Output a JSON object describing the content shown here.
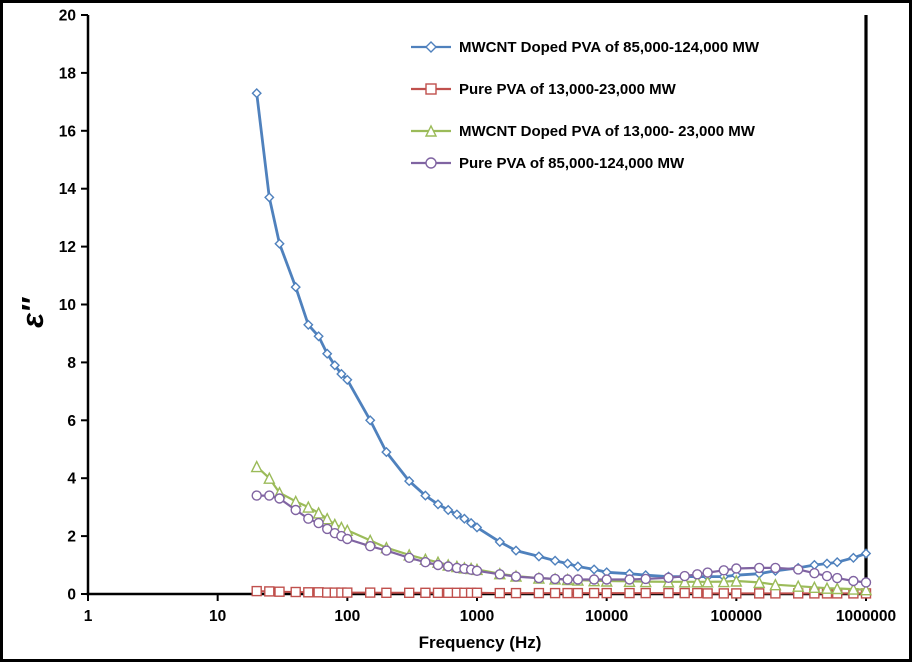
{
  "colors": {
    "background": "#FFFFFF",
    "frame_border": "#000000",
    "axis": "#000000",
    "text": "#000000"
  },
  "chart_data": {
    "type": "line",
    "title": "",
    "xlabel": "Frequency (Hz)",
    "ylabel": "ε″",
    "x_scale": "log",
    "xlim": [
      1,
      1000000
    ],
    "ylim": [
      0,
      20
    ],
    "grid": false,
    "legend_position": "top-right-inside",
    "y_ticks": [
      0,
      2,
      4,
      6,
      8,
      10,
      12,
      14,
      16,
      18,
      20
    ],
    "x_ticks": [
      1,
      10,
      100,
      1000,
      10000,
      100000,
      1000000
    ],
    "x_tick_labels": [
      "1",
      "10",
      "100",
      "1000",
      "10000",
      "100000",
      "1000000"
    ],
    "x": [
      20,
      25,
      30,
      40,
      50,
      60,
      70,
      80,
      90,
      100,
      150,
      200,
      300,
      400,
      500,
      600,
      700,
      800,
      900,
      1000,
      1500,
      2000,
      3000,
      4000,
      5000,
      6000,
      8000,
      10000,
      15000,
      20000,
      30000,
      40000,
      50000,
      60000,
      80000,
      100000,
      150000,
      200000,
      300000,
      400000,
      500000,
      600000,
      800000,
      1000000
    ],
    "series": [
      {
        "name": "MWCNT Doped PVA of 85,000-124,000 MW",
        "color": "#4F81BD",
        "marker": "diamond",
        "marker_size": 4.2,
        "line_width": 2.8,
        "values": [
          17.3,
          13.7,
          12.1,
          10.6,
          9.3,
          8.9,
          8.3,
          7.9,
          7.6,
          7.4,
          6.0,
          4.9,
          3.9,
          3.4,
          3.1,
          2.9,
          2.75,
          2.6,
          2.45,
          2.3,
          1.8,
          1.5,
          1.3,
          1.15,
          1.05,
          0.95,
          0.85,
          0.75,
          0.7,
          0.65,
          0.6,
          0.6,
          0.6,
          0.6,
          0.6,
          0.65,
          0.7,
          0.8,
          0.9,
          1.0,
          1.05,
          1.1,
          1.25,
          1.4
        ]
      },
      {
        "name": "Pure PVA of 13,000-23,000 MW",
        "color": "#C0504D",
        "marker": "square",
        "marker_size": 4.5,
        "line_width": 2.0,
        "values": [
          0.1,
          0.09,
          0.08,
          0.07,
          0.06,
          0.06,
          0.05,
          0.05,
          0.05,
          0.05,
          0.05,
          0.04,
          0.04,
          0.04,
          0.04,
          0.04,
          0.04,
          0.04,
          0.04,
          0.04,
          0.03,
          0.03,
          0.03,
          0.03,
          0.03,
          0.03,
          0.03,
          0.03,
          0.03,
          0.03,
          0.03,
          0.03,
          0.03,
          0.02,
          0.02,
          0.02,
          0.02,
          0.02,
          0.02,
          0.02,
          0.02,
          0.02,
          0.02,
          0.02
        ]
      },
      {
        "name": "MWCNT Doped PVA of 13,000- 23,000 MW",
        "color": "#9BBB59",
        "marker": "triangle",
        "marker_size": 5.0,
        "line_width": 2.2,
        "values": [
          4.4,
          4.0,
          3.5,
          3.2,
          3.0,
          2.8,
          2.6,
          2.4,
          2.3,
          2.2,
          1.85,
          1.6,
          1.35,
          1.2,
          1.1,
          1.0,
          0.95,
          0.9,
          0.88,
          0.85,
          0.7,
          0.62,
          0.55,
          0.52,
          0.5,
          0.48,
          0.46,
          0.45,
          0.44,
          0.43,
          0.42,
          0.42,
          0.42,
          0.42,
          0.43,
          0.45,
          0.4,
          0.32,
          0.27,
          0.23,
          0.2,
          0.19,
          0.17,
          0.15
        ]
      },
      {
        "name": "Pure PVA of 85,000-124,000 MW",
        "color": "#8064A2",
        "marker": "circle",
        "marker_size": 4.5,
        "line_width": 2.2,
        "values": [
          3.4,
          3.4,
          3.3,
          2.9,
          2.6,
          2.45,
          2.25,
          2.1,
          2.0,
          1.9,
          1.65,
          1.5,
          1.25,
          1.1,
          1.0,
          0.95,
          0.9,
          0.87,
          0.84,
          0.8,
          0.68,
          0.6,
          0.55,
          0.52,
          0.5,
          0.5,
          0.5,
          0.5,
          0.5,
          0.52,
          0.56,
          0.62,
          0.68,
          0.74,
          0.82,
          0.88,
          0.9,
          0.9,
          0.85,
          0.72,
          0.62,
          0.55,
          0.45,
          0.4
        ]
      }
    ]
  }
}
